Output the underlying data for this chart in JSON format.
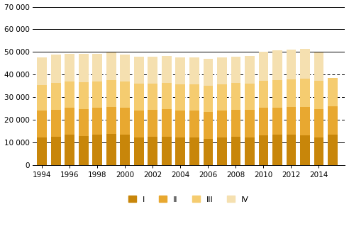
{
  "years": [
    1994,
    1995,
    1996,
    1997,
    1998,
    1999,
    2000,
    2001,
    2002,
    2003,
    2004,
    2005,
    2006,
    2007,
    2008,
    2009,
    2010,
    2011,
    2012,
    2013,
    2014,
    2015
  ],
  "Q1": [
    12200,
    12500,
    13500,
    12700,
    13400,
    13700,
    13400,
    12200,
    12400,
    12500,
    12300,
    12100,
    11600,
    12200,
    12500,
    12200,
    13200,
    13400,
    13400,
    13200,
    12100,
    13500
  ],
  "Q2": [
    11800,
    12000,
    11700,
    12100,
    11900,
    12000,
    11800,
    12000,
    11900,
    12100,
    11900,
    12000,
    12000,
    11800,
    12000,
    12100,
    12200,
    12100,
    12300,
    12600,
    12500,
    12500
  ],
  "Q3": [
    11500,
    11800,
    11600,
    11800,
    11700,
    11900,
    11700,
    11700,
    11700,
    11700,
    11500,
    11700,
    11600,
    11700,
    11700,
    11800,
    11900,
    12100,
    12200,
    12500,
    12700,
    12500
  ],
  "Q4": [
    12200,
    12500,
    12500,
    12500,
    12200,
    12200,
    12000,
    12000,
    11800,
    11800,
    11800,
    11900,
    11900,
    11800,
    11700,
    12200,
    12700,
    13000,
    13000,
    13200,
    12400,
    0
  ],
  "colors": [
    "#c8860a",
    "#e8a830",
    "#f5cc70",
    "#f5e0b0"
  ],
  "ylim": [
    0,
    70000
  ],
  "yticks": [
    0,
    10000,
    20000,
    30000,
    40000,
    50000,
    60000,
    70000
  ],
  "ytick_labels": [
    "0",
    "10 000",
    "20 000",
    "30 000",
    "40 000",
    "50 000",
    "60 000",
    "70 000"
  ],
  "legend_labels": [
    "I",
    "II",
    "III",
    "IV"
  ],
  "bg_color": "#ffffff",
  "solid_gridlines": [
    0,
    10000,
    50000,
    60000,
    70000
  ],
  "dashed_gridlines": [
    20000,
    30000,
    40000
  ],
  "bar_width": 0.7,
  "xlim": [
    1993.3,
    2015.9
  ]
}
